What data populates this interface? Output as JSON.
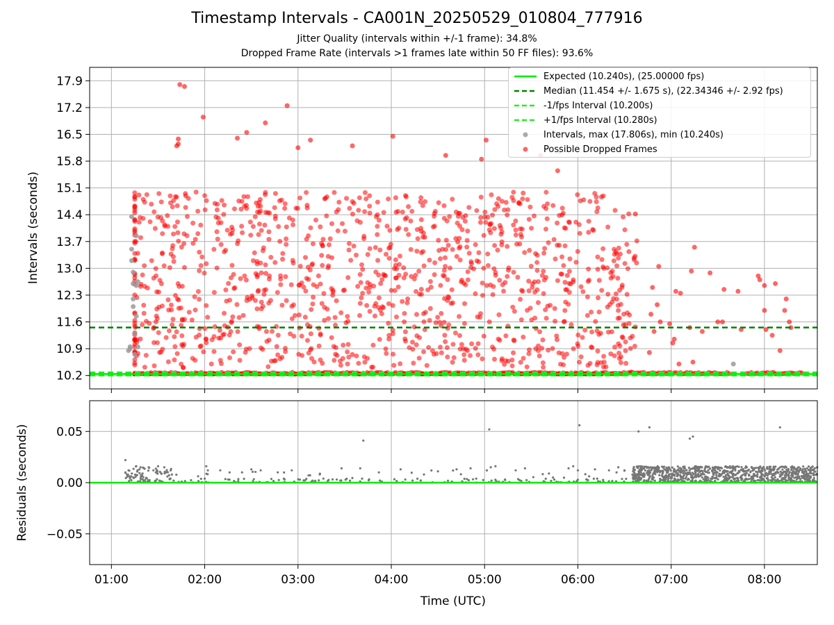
{
  "title": "Timestamp Intervals - CA001N_20250529_010804_777916",
  "subtitle_1": "Jitter Quality (intervals within +/-1 frame): 34.8%",
  "subtitle_2": "Dropped Frame Rate (intervals >1 frames late within 50 FF files): 93.6%",
  "colors": {
    "expected": "#00ee00",
    "median": "#008000",
    "interval_lines": "#22ee22",
    "dropped": "#ff0000",
    "intervals": "#9a9a9a",
    "residuals": "#777777",
    "grid": "#b0b0b0"
  },
  "chart_data": [
    {
      "type": "scatter",
      "panel": "top",
      "ylabel": "Intervals (seconds)",
      "xlabel": "",
      "x_ticks": [
        "01:00",
        "02:00",
        "03:00",
        "04:00",
        "05:00",
        "06:00",
        "07:00",
        "08:00"
      ],
      "xlim": [
        "00:46",
        "08:34"
      ],
      "y_ticks": [
        "10.2",
        "10.9",
        "11.6",
        "12.3",
        "13.0",
        "13.7",
        "14.4",
        "15.1",
        "15.8",
        "16.5",
        "17.2",
        "17.9"
      ],
      "ylim": [
        9.85,
        18.25
      ],
      "grid": true,
      "legend_position": "upper right",
      "legend": [
        {
          "label": "Expected (10.240s), (25.00000 fps)",
          "style": "solid-line",
          "color": "#00ee00"
        },
        {
          "label": "Median (11.454 +/- 1.675 s), (22.34346 +/- 2.92 fps)",
          "style": "dashed-line",
          "color": "#008000"
        },
        {
          "label": "-1/fps Interval (10.200s)",
          "style": "dashed-line",
          "color": "#22ee22"
        },
        {
          "label": "+1/fps Interval (10.280s)",
          "style": "dashed-line",
          "color": "#22ee22"
        },
        {
          "label": "Intervals, max (17.806s), min (10.240s)",
          "style": "marker",
          "color": "#9a9a9a"
        },
        {
          "label": "Possible Dropped Frames",
          "style": "marker",
          "color": "#ff0000"
        }
      ],
      "reference_lines": [
        {
          "y": 10.24,
          "style": "solid",
          "color": "#00ee00"
        },
        {
          "y": 11.454,
          "style": "dashed",
          "color": "#008000"
        },
        {
          "y": 10.2,
          "style": "dashed",
          "color": "#22ee22"
        },
        {
          "y": 10.28,
          "style": "dashed",
          "color": "#22ee22"
        }
      ],
      "series": [
        {
          "name": "Intervals, max (17.806s), min (10.240s)",
          "points": [
            [
              "01:10",
              10.24
            ],
            [
              "01:11",
              10.85
            ],
            [
              "01:12",
              10.9
            ],
            [
              "01:12",
              10.95
            ],
            [
              "01:13",
              14.35
            ],
            [
              "01:13",
              13.5
            ],
            [
              "01:13",
              13.2
            ],
            [
              "01:14",
              12.9
            ],
            [
              "01:14",
              12.6
            ],
            [
              "01:14",
              12.2
            ],
            [
              "01:14",
              12.0
            ],
            [
              "01:15",
              11.3
            ],
            [
              "01:15",
              10.75
            ],
            [
              "01:16",
              13.85
            ],
            [
              "01:16",
              12.55
            ],
            [
              "01:16",
              11.75
            ],
            [
              "01:17",
              10.95
            ],
            [
              "01:17",
              12.65
            ],
            [
              "07:40",
              10.5
            ]
          ]
        },
        {
          "name": "Possible Dropped Frames",
          "points": [
            [
              "01:44",
              17.8
            ],
            [
              "01:47",
              17.75
            ],
            [
              "01:43",
              16.25
            ],
            [
              "01:42",
              16.2
            ],
            [
              "01:43",
              16.38
            ],
            [
              "01:59",
              16.95
            ],
            [
              "02:53",
              17.25
            ],
            [
              "02:39",
              16.8
            ],
            [
              "02:27",
              16.55
            ],
            [
              "02:21",
              16.4
            ],
            [
              "03:08",
              16.35
            ],
            [
              "04:01",
              16.45
            ],
            [
              "03:35",
              16.2
            ],
            [
              "03:00",
              16.15
            ],
            [
              "05:48",
              16.05
            ],
            [
              "05:36",
              15.95
            ],
            [
              "05:47",
              15.55
            ],
            [
              "04:35",
              15.95
            ],
            [
              "04:58",
              15.85
            ],
            [
              "05:01",
              16.35
            ],
            [
              "06:37",
              14.42
            ],
            [
              "06:52",
              13.05
            ],
            [
              "07:15",
              13.55
            ],
            [
              "07:13",
              12.93
            ],
            [
              "07:25",
              12.88
            ],
            [
              "07:34",
              12.45
            ],
            [
              "07:43",
              12.4
            ],
            [
              "07:45",
              11.4
            ],
            [
              "07:56",
              12.8
            ],
            [
              "07:57",
              12.7
            ],
            [
              "08:00",
              12.55
            ],
            [
              "08:00",
              11.9
            ],
            [
              "08:01",
              11.4
            ],
            [
              "08:05",
              11.25
            ],
            [
              "08:07",
              12.6
            ],
            [
              "08:10",
              10.85
            ],
            [
              "08:14",
              12.2
            ],
            [
              "08:16",
              11.6
            ],
            [
              "08:17",
              11.45
            ],
            [
              "08:13",
              11.9
            ],
            [
              "07:03",
              12.4
            ],
            [
              "07:06",
              12.35
            ],
            [
              "06:51",
              12.05
            ],
            [
              "06:53",
              11.6
            ],
            [
              "06:59",
              11.55
            ],
            [
              "07:02",
              11.15
            ],
            [
              "07:01",
              11.05
            ],
            [
              "07:12",
              11.45
            ],
            [
              "07:20",
              11.35
            ],
            [
              "07:30",
              11.6
            ],
            [
              "06:48",
              12.5
            ],
            [
              "06:47",
              11.8
            ],
            [
              "06:49",
              11.35
            ],
            [
              "06:46",
              10.8
            ],
            [
              "07:05",
              10.5
            ],
            [
              "07:14",
              10.55
            ],
            [
              "07:33",
              11.6
            ]
          ]
        }
      ]
    },
    {
      "type": "scatter",
      "panel": "bottom",
      "ylabel": "Residuals (seconds)",
      "xlabel": "Time (UTC)",
      "x_ticks": [
        "01:00",
        "02:00",
        "03:00",
        "04:00",
        "05:00",
        "06:00",
        "07:00",
        "08:00"
      ],
      "xlim": [
        "00:46",
        "08:34"
      ],
      "y_ticks": [
        "−0.05",
        "0.00",
        "0.05"
      ],
      "ylim": [
        -0.08,
        0.08
      ],
      "grid": true,
      "reference_lines": [
        {
          "y": 0.0,
          "style": "solid",
          "color": "#00ee00"
        }
      ],
      "series": [
        {
          "name": "Residuals",
          "points": [
            [
              "01:09",
              0.022
            ],
            [
              "03:42",
              0.041
            ],
            [
              "05:03",
              0.052
            ],
            [
              "06:01",
              0.056
            ],
            [
              "06:39",
              0.05
            ],
            [
              "06:46",
              0.054
            ],
            [
              "07:12",
              0.043
            ],
            [
              "07:14",
              0.045
            ],
            [
              "08:10",
              0.054
            ],
            [
              "01:09",
              0.01
            ],
            [
              "01:10",
              0.008
            ],
            [
              "01:11",
              0.012
            ],
            [
              "01:12",
              0.006
            ],
            [
              "01:16",
              0.016
            ],
            [
              "01:18",
              0.013
            ],
            [
              "01:21",
              0.014
            ],
            [
              "01:24",
              0.015
            ],
            [
              "01:27",
              0.012
            ],
            [
              "01:30",
              0.016
            ],
            [
              "01:32",
              0.009
            ],
            [
              "01:34",
              0.015
            ],
            [
              "01:36",
              0.006
            ],
            [
              "01:38",
              0.004
            ],
            [
              "01:40",
              0.002
            ],
            [
              "02:01",
              0.016
            ],
            [
              "02:02",
              0.012
            ],
            [
              "02:10",
              0.012
            ],
            [
              "02:16",
              0.01
            ],
            [
              "02:24",
              0.01
            ],
            [
              "02:30",
              0.013
            ],
            [
              "02:36",
              0.012
            ],
            [
              "02:47",
              0.01
            ],
            [
              "02:56",
              0.012
            ],
            [
              "03:14",
              0.008
            ],
            [
              "03:28",
              0.014
            ],
            [
              "03:40",
              0.014
            ],
            [
              "03:52",
              0.01
            ],
            [
              "04:06",
              0.013
            ],
            [
              "04:21",
              0.008
            ],
            [
              "04:30",
              0.011
            ],
            [
              "04:42",
              0.013
            ],
            [
              "04:51",
              0.014
            ],
            [
              "05:04",
              0.015
            ],
            [
              "05:07",
              0.016
            ],
            [
              "05:20",
              0.012
            ],
            [
              "05:26",
              0.014
            ],
            [
              "05:44",
              0.005
            ],
            [
              "05:54",
              0.014
            ],
            [
              "05:57",
              0.016
            ],
            [
              "06:00",
              0.012
            ],
            [
              "06:11",
              0.013
            ],
            [
              "06:20",
              0.012
            ],
            [
              "06:26",
              0.015
            ],
            [
              "06:30",
              0.012
            ]
          ]
        }
      ]
    }
  ]
}
